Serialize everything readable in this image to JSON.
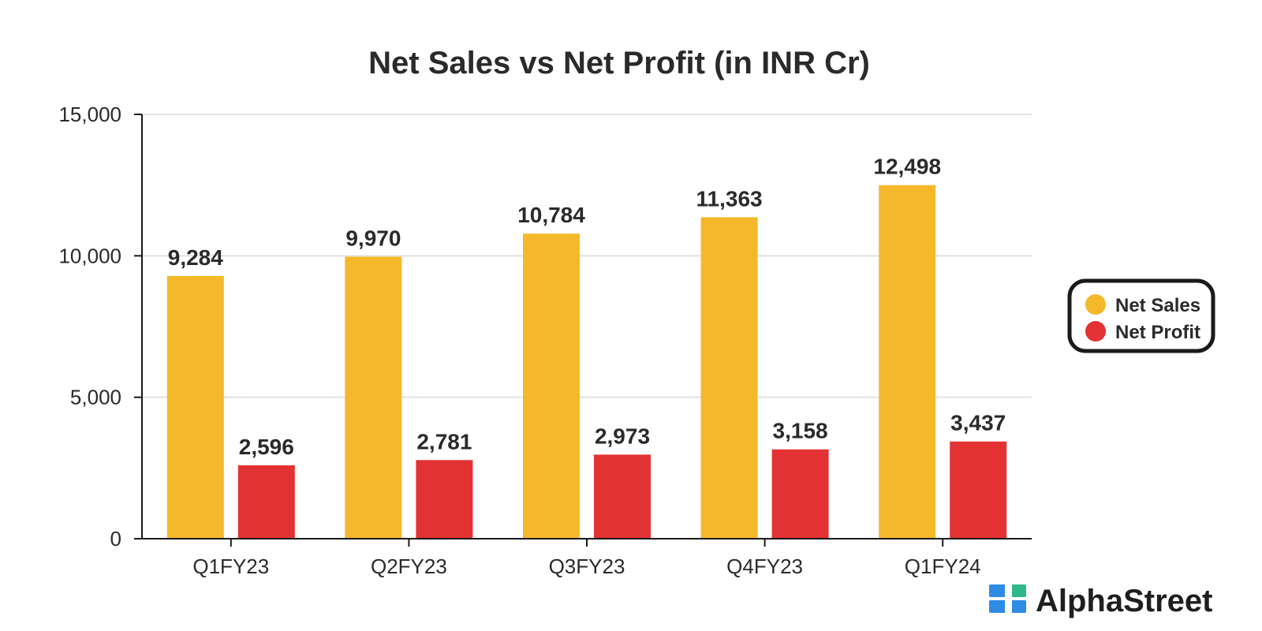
{
  "chart_data": {
    "type": "bar",
    "title": "Net Sales vs Net Profit (in INR Cr)",
    "xlabel": "",
    "ylabel": "",
    "categories": [
      "Q1FY23",
      "Q2FY23",
      "Q3FY23",
      "Q4FY23",
      "Q1FY24"
    ],
    "series": [
      {
        "name": "Net Sales",
        "color": "#F4B82A",
        "values": [
          9284,
          9970,
          10784,
          11363,
          12498
        ],
        "labels": [
          "9,284",
          "9,970",
          "10,784",
          "11,363",
          "12,498"
        ]
      },
      {
        "name": "Net Profit",
        "color": "#E33234",
        "values": [
          2596,
          2781,
          2973,
          3158,
          3437
        ],
        "labels": [
          "2,596",
          "2,781",
          "2,973",
          "3,158",
          "3,437"
        ]
      }
    ],
    "ylim": [
      0,
      15000
    ],
    "yticks": [
      0,
      5000,
      10000,
      15000
    ],
    "ytick_labels": [
      "0",
      "5,000",
      "10,000",
      "15,000"
    ],
    "grid": true,
    "legend_position": "right"
  },
  "brand": {
    "name": "AlphaStreet",
    "logo_icon": "alphastreet-logo-icon",
    "logo_colors": [
      "#2E8BE6",
      "#2FB88A"
    ]
  }
}
